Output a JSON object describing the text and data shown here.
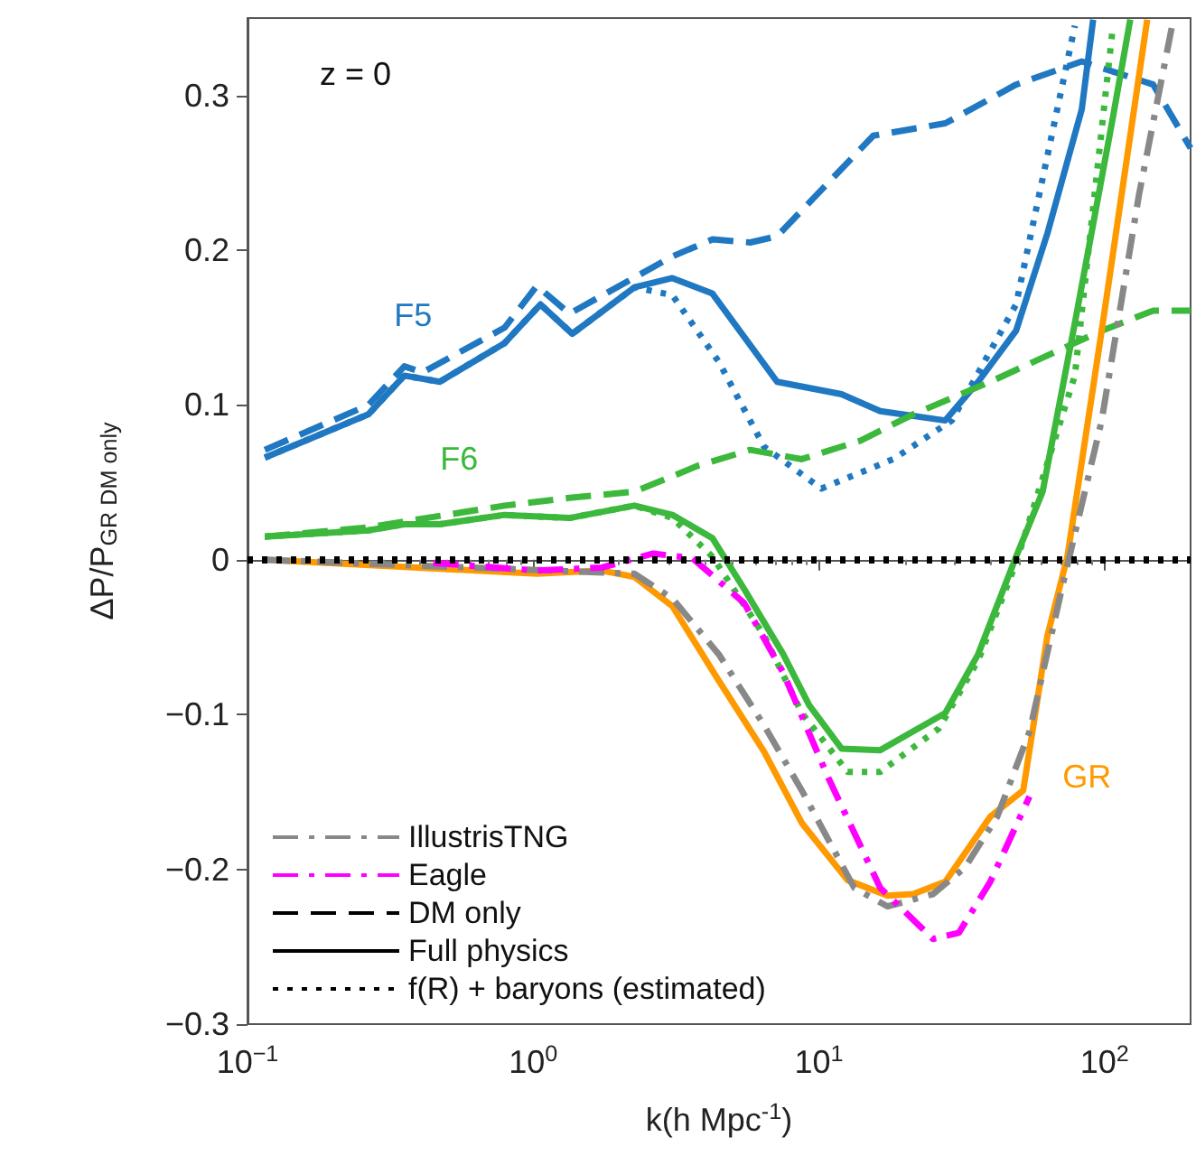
{
  "chart_data": {
    "type": "line",
    "xlabel": "k(h Mpc$^{-1}$)",
    "ylabel": "ΔP/P$_{GR DM only}$",
    "log": "x",
    "xlim": [
      0.1,
      200
    ],
    "xticks": [
      {
        "value": 0.1,
        "label": "10$^{−1}$"
      },
      {
        "value": 1,
        "label": "10$^{0}$"
      },
      {
        "value": 10,
        "label": "10$^{1}$"
      },
      {
        "value": 100,
        "label": "10$^{2}$"
      }
    ],
    "ylim": [
      -0.3,
      0.35
    ],
    "yticks": [
      {
        "value": -0.3,
        "label": "−0.3"
      },
      {
        "value": -0.2,
        "label": "−0.2"
      },
      {
        "value": -0.1,
        "label": "−0.1"
      },
      0,
      0.1,
      0.2,
      0.3
    ],
    "grid": false,
    "legend": "bottom left",
    "marker": "none",
    "annotations": [
      "z = 0",
      {
        "text": "F5",
        "x": 0.38,
        "y": 0.123
      },
      {
        "text": "F6",
        "x": 0.55,
        "y": 0.03
      },
      {
        "text": "GR",
        "x": 52.9,
        "y": -0.14
      }
    ],
    "ref_lines": [
      {
        "axis": "y",
        "value": 0,
        "color": "#000000",
        "line_style": "dotted"
      }
    ],
    "series": [
      {
        "color": "#1f78c1",
        "line_style": "dashed",
        "x": [
          0.115,
          0.265,
          0.354,
          0.41,
          0.794,
          1.03,
          1.34,
          3.07,
          4.24,
          5.75,
          7.14,
          15.5,
          27.7,
          49.0,
          83.2,
          148,
          200
        ],
        "values": [
          0.071,
          0.1,
          0.125,
          0.121,
          0.15,
          0.177,
          0.159,
          0.196,
          0.207,
          0.205,
          0.209,
          0.274,
          0.282,
          0.307,
          0.322,
          0.307,
          0.266
        ]
      },
      {
        "color": "#1f78c1",
        "line_style": "solid",
        "x": [
          0.115,
          0.265,
          0.354,
          0.471,
          0.794,
          1.06,
          1.37,
          2.26,
          3.07,
          4.24,
          7.14,
          12.0,
          16.4,
          27.7,
          36.1,
          49.0,
          63.1,
          83.2,
          91.2
        ],
        "values": [
          0.066,
          0.094,
          0.119,
          0.115,
          0.14,
          0.165,
          0.146,
          0.176,
          0.182,
          0.172,
          0.115,
          0.107,
          0.096,
          0.09,
          0.115,
          0.148,
          0.211,
          0.291,
          0.349
        ]
      },
      {
        "color": "#1f78c1",
        "line_style": "dotted",
        "x": [
          0.115,
          0.265,
          0.354,
          0.471,
          0.794,
          1.06,
          1.37,
          2.26,
          3.07,
          4.46,
          6.43,
          10.2,
          18.2,
          29.2,
          49.0,
          78.7
        ],
        "values": [
          0.066,
          0.094,
          0.119,
          0.115,
          0.14,
          0.165,
          0.146,
          0.176,
          0.171,
          0.128,
          0.073,
          0.046,
          0.065,
          0.09,
          0.165,
          0.345
        ]
      },
      {
        "color": "#3cb83c",
        "line_style": "dashed",
        "x": [
          0.115,
          0.265,
          0.794,
          1.34,
          2.26,
          3.8,
          5.75,
          8.71,
          14.0,
          21.4,
          39.8,
          63.1,
          97.7,
          148,
          200
        ],
        "values": [
          0.015,
          0.021,
          0.035,
          0.04,
          0.044,
          0.061,
          0.071,
          0.065,
          0.077,
          0.094,
          0.115,
          0.132,
          0.148,
          0.161,
          0.161
        ]
      },
      {
        "color": "#3cb83c",
        "line_style": "solid",
        "x": [
          0.115,
          0.265,
          0.354,
          0.471,
          0.794,
          1.34,
          2.26,
          3.07,
          4.24,
          5.48,
          7.5,
          9.25,
          12.0,
          16.4,
          27.7,
          36.1,
          49.0,
          60.7,
          78.7,
          107,
          123
        ],
        "values": [
          0.015,
          0.019,
          0.023,
          0.023,
          0.029,
          0.027,
          0.035,
          0.029,
          0.014,
          -0.019,
          -0.061,
          -0.094,
          -0.122,
          -0.123,
          -0.099,
          -0.061,
          0.002,
          0.044,
          0.153,
          0.286,
          0.349
        ]
      },
      {
        "color": "#3cb83c",
        "line_style": "dotted",
        "x": [
          0.115,
          0.265,
          0.354,
          0.471,
          0.794,
          1.34,
          2.26,
          3.07,
          4.24,
          6.43,
          8.71,
          12.6,
          16.4,
          26.3,
          36.1,
          49.0,
          78.7,
          107
        ],
        "values": [
          0.015,
          0.019,
          0.023,
          0.023,
          0.029,
          0.027,
          0.035,
          0.027,
          0.002,
          -0.049,
          -0.099,
          -0.137,
          -0.137,
          -0.109,
          -0.065,
          -0.002,
          0.119,
          0.345
        ]
      },
      {
        "color": "#ff9900",
        "line_style": "solid",
        "x": [
          0.115,
          1.03,
          1.74,
          2.26,
          3.07,
          4.46,
          6.43,
          8.71,
          12.6,
          17.4,
          21.4,
          27.7,
          39.8,
          51.9,
          63.1,
          74.1,
          97.7,
          141
        ],
        "values": [
          0,
          -0.009,
          -0.007,
          -0.011,
          -0.03,
          -0.078,
          -0.124,
          -0.17,
          -0.207,
          -0.217,
          -0.216,
          -0.208,
          -0.166,
          -0.149,
          -0.049,
          0.002,
          0.148,
          0.349
        ]
      },
      {
        "name": "IllustrisTNG",
        "color": "#888888",
        "line_style": "dashdot",
        "x": [
          0.115,
          2.26,
          3.07,
          4.46,
          6.43,
          8.71,
          13.3,
          17.4,
          25.1,
          32.4,
          42.1,
          54.6,
          70.8,
          97.7,
          132,
          174
        ],
        "values": [
          0,
          -0.009,
          -0.025,
          -0.061,
          -0.107,
          -0.149,
          -0.212,
          -0.224,
          -0.216,
          -0.199,
          -0.166,
          -0.111,
          -0.019,
          0.09,
          0.236,
          0.349
        ]
      },
      {
        "name": "Eagle",
        "color": "#ff00ff",
        "line_style": "dashdot",
        "x": [
          0.447,
          1.03,
          1.74,
          2.63,
          3.61,
          5.48,
          7.5,
          10.8,
          16.4,
          25.1,
          30.9,
          39.8,
          54.6
        ],
        "values": [
          -0.002,
          -0.007,
          -0.005,
          0.004,
          0.001,
          -0.028,
          -0.073,
          -0.141,
          -0.212,
          -0.245,
          -0.241,
          -0.208,
          -0.153
        ]
      },
      {
        "name": "DM only",
        "color": "#000000",
        "line_style": "dashed"
      },
      {
        "name": "Full physics",
        "color": "#000000",
        "line_style": "solid"
      },
      {
        "name": "f(R) + baryons (estimated)",
        "color": "#000000",
        "line_style": "dotted"
      }
    ]
  }
}
